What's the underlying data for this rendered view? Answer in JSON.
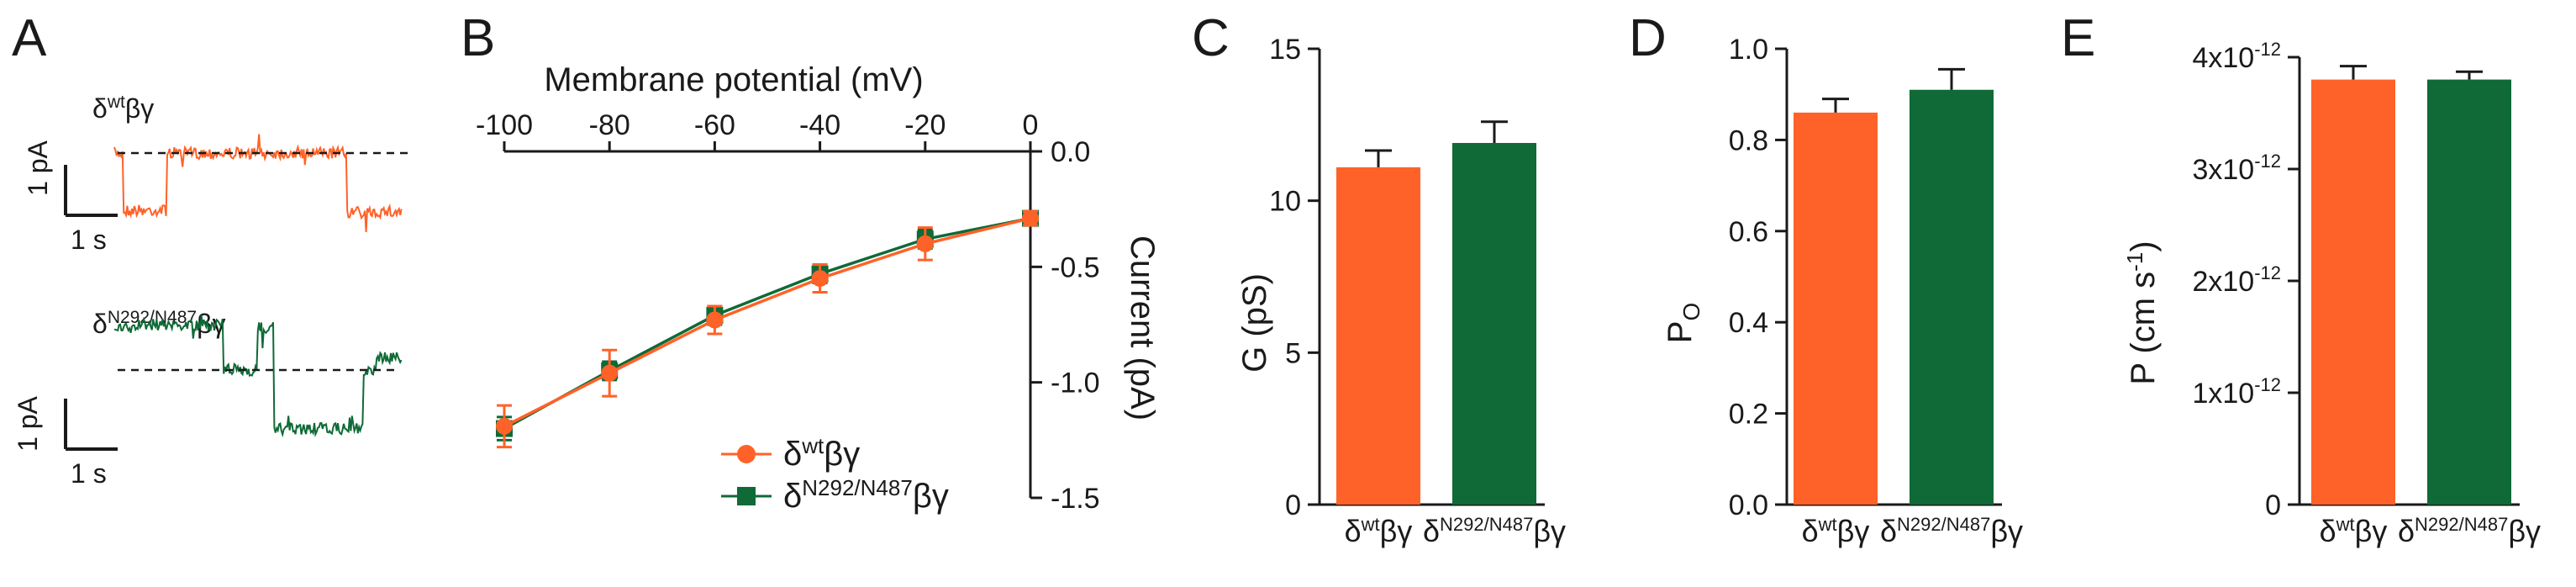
{
  "colors": {
    "wt": "#ff6228",
    "mut": "#0f6a37",
    "axis": "#1a1a1a"
  },
  "panels": {
    "A": {
      "letter": "A",
      "traces": [
        {
          "name": "δwtβγ",
          "label_base": "δ",
          "label_sup": "wt",
          "label_tail": "βγ",
          "scale_y": "1 pA",
          "scale_x": "1 s"
        },
        {
          "name": "δN292/N487βγ",
          "label_base": "δ",
          "label_sup": "N292/N487",
          "label_tail": "βγ",
          "scale_y": "1 pA",
          "scale_x": "1 s"
        }
      ]
    },
    "B": {
      "letter": "B"
    },
    "C": {
      "letter": "C"
    },
    "D": {
      "letter": "D"
    },
    "E": {
      "letter": "E"
    }
  },
  "chart_data": [
    {
      "panel": "B",
      "type": "line",
      "xlabel": "Membrane potential (mV)",
      "ylabel": "Current (pA)",
      "xlim": [
        -100,
        0
      ],
      "ylim": [
        -1.5,
        0
      ],
      "x_ticks": [
        "-100",
        "-80",
        "-60",
        "-40",
        "-20",
        "0"
      ],
      "y_ticks": [
        "0.0",
        "-0.5",
        "-1.0",
        "-1.5"
      ],
      "x": [
        -100,
        -80,
        -60,
        -40,
        -20,
        0
      ],
      "legend_position": "bottom-right",
      "series": [
        {
          "name": "δwtβγ",
          "label_base": "δ",
          "label_sup": "wt",
          "label_tail": "βγ",
          "marker": "circle",
          "values": [
            -1.19,
            -0.96,
            -0.73,
            -0.55,
            -0.4,
            -0.29
          ],
          "errors": [
            0.09,
            0.1,
            0.06,
            0.06,
            0.07,
            0.03
          ]
        },
        {
          "name": "δN292/N487βγ",
          "label_base": "δ",
          "label_sup": "N292/N487",
          "label_tail": "βγ",
          "marker": "square",
          "values": [
            -1.2,
            -0.95,
            -0.71,
            -0.53,
            -0.38,
            -0.29
          ],
          "errors": [
            0.05,
            0.04,
            0.04,
            0.04,
            0.04,
            0.03
          ]
        }
      ]
    },
    {
      "panel": "C",
      "type": "bar",
      "ylabel": "G (pS)",
      "ylim": [
        0,
        15
      ],
      "y_ticks": [
        "0",
        "5",
        "10",
        "15"
      ],
      "categories": [
        {
          "name": "δwtβγ",
          "base": "δ",
          "sup": "wt",
          "tail": "βγ"
        },
        {
          "name": "δN292/N487βγ",
          "base": "δ",
          "sup": "N292/N487",
          "tail": "βγ"
        }
      ],
      "values": [
        11.1,
        11.9
      ],
      "errors": [
        0.55,
        0.7
      ]
    },
    {
      "panel": "D",
      "type": "bar",
      "ylabel": "PO",
      "ylabel_base": "P",
      "ylabel_sub": "O",
      "ylim": [
        0,
        1.0
      ],
      "y_ticks": [
        "0.0",
        "0.2",
        "0.4",
        "0.6",
        "0.8",
        "1.0"
      ],
      "categories": [
        {
          "name": "δwtβγ",
          "base": "δ",
          "sup": "wt",
          "tail": "βγ"
        },
        {
          "name": "δN292/N487βγ",
          "base": "δ",
          "sup": "N292/N487",
          "tail": "βγ"
        }
      ],
      "values": [
        0.86,
        0.91
      ],
      "errors": [
        0.03,
        0.045
      ]
    },
    {
      "panel": "E",
      "type": "bar",
      "ylabel": "P (cm s-1)",
      "ylabel_base": "P (cm s",
      "ylabel_sup": "-1",
      "ylabel_tail": ")",
      "ylim": [
        0,
        4e-12
      ],
      "y_ticks": [
        {
          "base": "0",
          "sup": ""
        },
        {
          "base": "1x10",
          "sup": "-12"
        },
        {
          "base": "2x10",
          "sup": "-12"
        },
        {
          "base": "3x10",
          "sup": "-12"
        },
        {
          "base": "4x10",
          "sup": "-12"
        }
      ],
      "categories": [
        {
          "name": "δwtβγ",
          "base": "δ",
          "sup": "wt",
          "tail": "βγ"
        },
        {
          "name": "δN292/N487βγ",
          "base": "δ",
          "sup": "N292/N487",
          "tail": "βγ"
        }
      ],
      "values": [
        3.8e-12,
        3.8e-12
      ],
      "errors": [
        1.2e-13,
        7e-14
      ]
    }
  ]
}
